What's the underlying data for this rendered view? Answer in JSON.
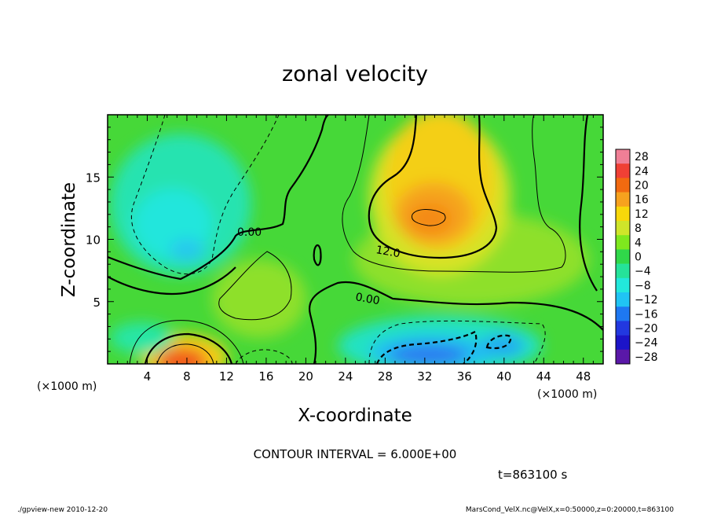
{
  "chart_data": {
    "type": "heatmap",
    "title": "zonal velocity",
    "xlabel": "X-coordinate",
    "ylabel": "Z-coordinate",
    "x_unit_label": "(×1000 m)",
    "y_unit_label": "(×1000 m)",
    "xlim": [
      0,
      50
    ],
    "ylim": [
      0,
      20
    ],
    "x_ticks": [
      "4",
      "8",
      "12",
      "16",
      "20",
      "24",
      "28",
      "32",
      "36",
      "40",
      "44",
      "48"
    ],
    "y_ticks": [
      "5",
      "10",
      "15"
    ],
    "colorbar": {
      "labels": [
        "28",
        "24",
        "20",
        "16",
        "12",
        "8",
        "4",
        "0",
        "−4",
        "−8",
        "−12",
        "−16",
        "−20",
        "−24",
        "−28"
      ],
      "colors": [
        "#f07f96",
        "#f04035",
        "#f26a10",
        "#f7a21e",
        "#f8d80a",
        "#cfe52a",
        "#7fe81e",
        "#30d84a",
        "#25e39a",
        "#22e8dc",
        "#20c4f4",
        "#1e78f2",
        "#2238e0",
        "#1c14c8",
        "#5a18a8"
      ]
    },
    "contour_labels": [
      {
        "text": "0.00",
        "x": 16.5,
        "z": 10.5
      },
      {
        "text": "12.0",
        "x": 28.0,
        "z": 9.0
      },
      {
        "text": "0.00",
        "x": 26.5,
        "z": 5.5
      }
    ],
    "contour_interval_text": "CONTOUR INTERVAL = 6.000E+00",
    "time_text": "t=863100 s",
    "features": [
      {
        "name": "westerly jet upper",
        "x": 32,
        "z": 12,
        "value": 18
      },
      {
        "name": "westerly near surface",
        "x": 8,
        "z": 0.5,
        "value": 18
      },
      {
        "name": "easterly upper",
        "x": 8,
        "z": 11,
        "value": -10
      },
      {
        "name": "easterly near surface",
        "x": 33,
        "z": 1,
        "value": -16
      }
    ]
  },
  "footer": {
    "left": "./gpview-new   2010-12-20",
    "right": "MarsCond_VelX.nc@VelX,x=0:50000,z=0:20000,t=863100"
  }
}
